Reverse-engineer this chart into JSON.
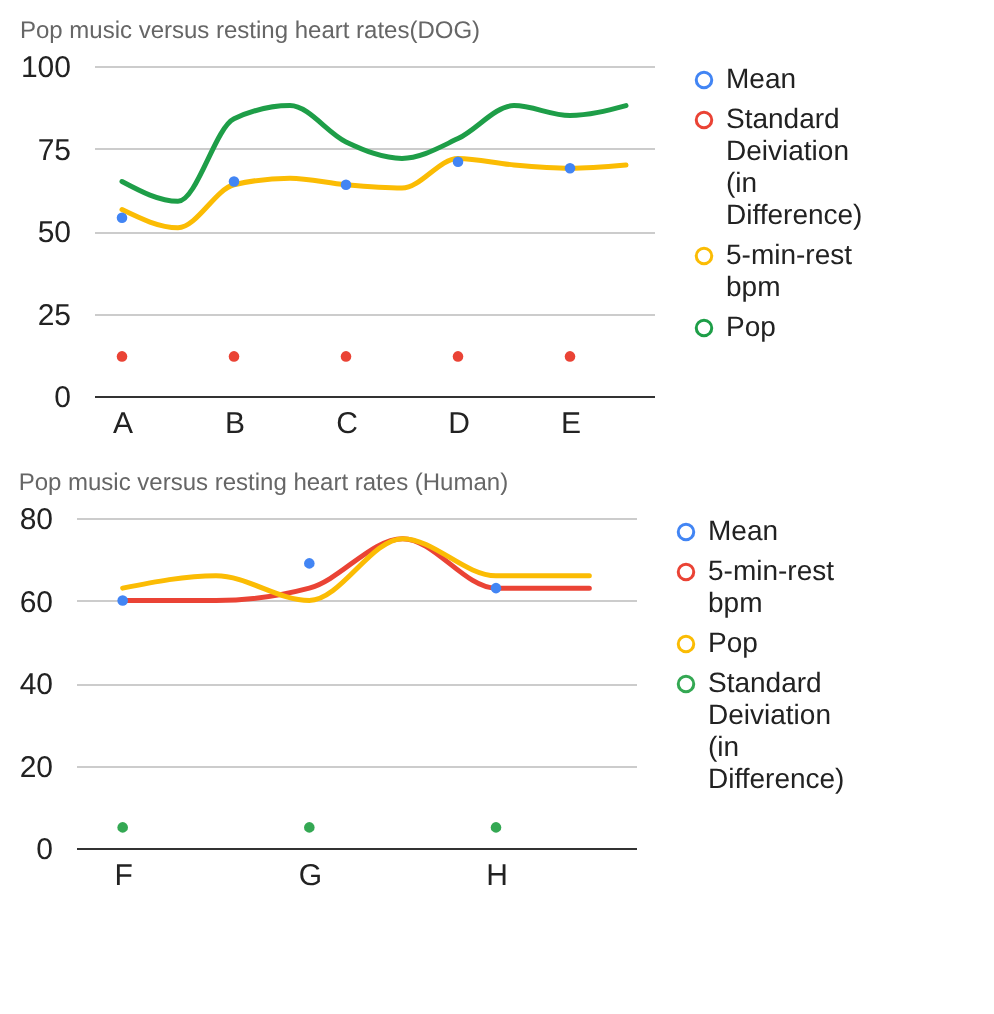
{
  "chart_data": [
    {
      "type": "line",
      "title": "Pop music versus resting heart rates(DOG)",
      "categories": [
        "A",
        null,
        "B",
        null,
        "C",
        null,
        "D",
        null,
        "E",
        null
      ],
      "series": [
        {
          "name": "Mean",
          "type": "scatter",
          "color": "#4285f4",
          "values": [
            54,
            null,
            65,
            null,
            64,
            null,
            71,
            null,
            69,
            null
          ]
        },
        {
          "name": "Standard Deiviation (in Difference)",
          "type": "scatter",
          "color": "#ea4335",
          "values": [
            12,
            null,
            12,
            null,
            12,
            null,
            12,
            null,
            12,
            null
          ]
        },
        {
          "name": "5-min-rest bpm",
          "type": "line",
          "color": "#fbbc04",
          "values": [
            56.5,
            51,
            64,
            66,
            64,
            63,
            72,
            70,
            69,
            70
          ]
        },
        {
          "name": "Pop",
          "type": "line",
          "color": "#1e9e48",
          "values": [
            65,
            59,
            84,
            88,
            77,
            72,
            78,
            88,
            85,
            88
          ]
        }
      ],
      "ylim": [
        0,
        100
      ],
      "yticks": [
        0,
        25,
        50,
        75,
        100
      ],
      "grid": "y",
      "legend": "right"
    },
    {
      "type": "line",
      "title": "Pop music versus resting heart rates (Human)",
      "categories": [
        "F",
        null,
        "G",
        null,
        "H",
        null
      ],
      "series": [
        {
          "name": "Mean",
          "type": "scatter",
          "color": "#4285f4",
          "values": [
            60,
            null,
            69,
            null,
            63,
            null
          ]
        },
        {
          "name": "5-min-rest bpm",
          "type": "line",
          "color": "#ea4335",
          "values": [
            60,
            60,
            63,
            75,
            63,
            63
          ]
        },
        {
          "name": "Pop",
          "type": "line",
          "color": "#fbbc04",
          "values": [
            63,
            66,
            60,
            75,
            66,
            66
          ]
        },
        {
          "name": "Standard Deiviation (in Difference)",
          "type": "scatter",
          "color": "#34a853",
          "values": [
            5,
            null,
            5,
            null,
            5,
            null
          ]
        }
      ],
      "ylim": [
        0,
        80
      ],
      "yticks": [
        0,
        20,
        40,
        60,
        80
      ],
      "grid": "y",
      "legend": "right"
    }
  ]
}
